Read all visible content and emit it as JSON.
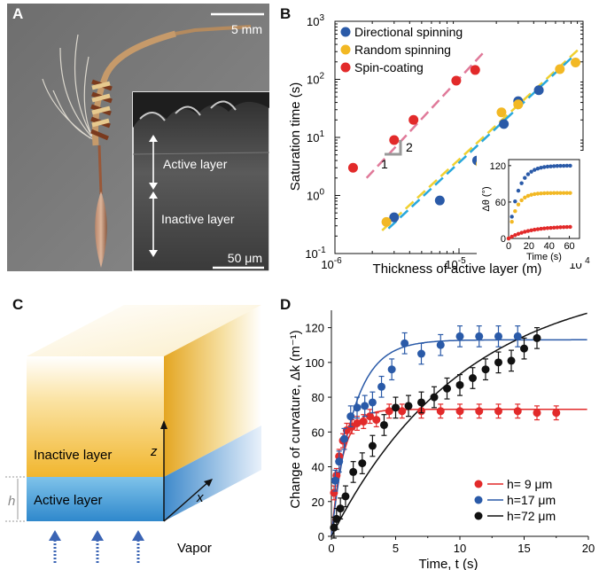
{
  "panels": {
    "a": "A",
    "b": "B",
    "c": "C",
    "d": "D"
  },
  "photo": {
    "scale_bar_top": "5 mm",
    "scale_bar_inset": "50 μm",
    "label_active": "Active layer",
    "label_inactive": "Inactive layer"
  },
  "diagram_c": {
    "inactive_label": "Inactive layer",
    "active_label": "Active layer",
    "axis_z": "z",
    "axis_x": "x",
    "thickness_label": "h",
    "vapor_label": "Vapor"
  },
  "chart_data": [
    {
      "type": "scatter",
      "xscale": "log",
      "yscale": "log",
      "xlabel": "Thickness of active layer (m)",
      "ylabel": "Saturation time (s)",
      "xlim": [
        1e-06,
        0.0001
      ],
      "ylim": [
        0.1,
        1000
      ],
      "x_ticks": [
        {
          "v": 1e-06,
          "base": "10",
          "exp": "-6"
        },
        {
          "v": 1e-05,
          "base": "10",
          "exp": "-5"
        },
        {
          "v": 0.0001,
          "base": "10",
          "exp": "-4"
        }
      ],
      "y_ticks": [
        {
          "v": 0.1,
          "base": "10",
          "exp": "-1"
        },
        {
          "v": 1,
          "base": "10",
          "exp": "0"
        },
        {
          "v": 10,
          "base": "10",
          "exp": "1"
        },
        {
          "v": 100,
          "base": "10",
          "exp": "2"
        },
        {
          "v": 1000,
          "base": "10",
          "exp": "3"
        }
      ],
      "legend_position": "top-left",
      "series": [
        {
          "name": "Directional spinning",
          "color": "#2a5aa8",
          "points": [
            [
              3e-06,
              0.42
            ],
            [
              7e-06,
              0.82
            ],
            [
              1.4e-05,
              4.0
            ],
            [
              2.3e-05,
              17
            ],
            [
              3e-05,
              42
            ],
            [
              4.4e-05,
              65
            ]
          ]
        },
        {
          "name": "Random spinning",
          "color": "#f2b824",
          "points": [
            [
              2.6e-06,
              0.35
            ],
            [
              1.5e-05,
              3.5
            ],
            [
              2.2e-05,
              27
            ],
            [
              3e-05,
              37
            ],
            [
              6.5e-05,
              150
            ],
            [
              8.7e-05,
              195
            ]
          ]
        },
        {
          "name": "Spin-coating",
          "color": "#e22a2a",
          "points": [
            [
              1.4e-06,
              3.0
            ],
            [
              3e-06,
              9.0
            ],
            [
              4.3e-06,
              20
            ],
            [
              9.5e-06,
              95
            ],
            [
              1.35e-05,
              145
            ]
          ]
        }
      ],
      "fit_lines": [
        {
          "color": "#e07a9a",
          "from": [
            1.8e-06,
            2.0
          ],
          "to": [
            1.6e-05,
            300
          ]
        },
        {
          "color": "#f0d030",
          "from": [
            2.4e-06,
            0.25
          ],
          "to": [
            9.5e-05,
            350
          ]
        },
        {
          "color": "#29a8dc",
          "from": [
            2.7e-06,
            0.27
          ],
          "to": [
            8.5e-05,
            260
          ]
        }
      ],
      "slope_marker": {
        "run": "1",
        "rise": "2"
      },
      "inset": {
        "type": "scatter",
        "xlabel": "Time (s)",
        "ylabel": "Δθ (°)",
        "xlim": [
          0,
          70
        ],
        "ylim": [
          0,
          130
        ],
        "x_ticks": [
          "0",
          "20",
          "40",
          "60"
        ],
        "y_ticks": [
          "0",
          "60",
          "120"
        ],
        "series": [
          {
            "name": "Directional spinning",
            "color": "#2a5aa8",
            "final": 120,
            "tau": 9
          },
          {
            "name": "Random spinning",
            "color": "#f2b824",
            "final": 75,
            "tau": 7
          },
          {
            "name": "Spin-coating",
            "color": "#e22a2a",
            "final": 20,
            "tau": 20
          }
        ]
      }
    },
    {
      "type": "scatter",
      "xlabel": "Time, t (s)",
      "ylabel": "Change of curvature, Δk (m⁻¹)",
      "xlim": [
        0,
        20
      ],
      "ylim": [
        0,
        130
      ],
      "x_ticks": [
        "0",
        "5",
        "10",
        "15",
        "20"
      ],
      "y_ticks": [
        "0",
        "20",
        "40",
        "60",
        "80",
        "100",
        "120"
      ],
      "legend_position": "bottom-right",
      "series": [
        {
          "name": "h=  9 μm",
          "color": "#e22a2a",
          "fit_final": 73,
          "fit_tau": 0.9,
          "points": [
            [
              0.2,
              25
            ],
            [
              0.4,
              35
            ],
            [
              0.6,
              46
            ],
            [
              0.9,
              55
            ],
            [
              1.2,
              61
            ],
            [
              1.6,
              63
            ],
            [
              2.0,
              65
            ],
            [
              2.5,
              66
            ],
            [
              3.0,
              69
            ],
            [
              3.5,
              67
            ],
            [
              4.5,
              72
            ],
            [
              5.5,
              72
            ],
            [
              7.0,
              72
            ],
            [
              8.5,
              72
            ],
            [
              10.0,
              72
            ],
            [
              11.5,
              72
            ],
            [
              13.0,
              72
            ],
            [
              14.5,
              72
            ],
            [
              16.0,
              71
            ],
            [
              17.5,
              71
            ]
          ],
          "error": 4
        },
        {
          "name": "h=17 μm",
          "color": "#2a5aa8",
          "fit_final": 113,
          "fit_tau": 1.7,
          "points": [
            [
              0.3,
              32
            ],
            [
              0.6,
              43
            ],
            [
              1.0,
              56
            ],
            [
              1.5,
              69
            ],
            [
              2.0,
              74
            ],
            [
              2.6,
              75
            ],
            [
              3.2,
              77
            ],
            [
              3.9,
              86
            ],
            [
              4.7,
              96
            ],
            [
              5.7,
              111
            ],
            [
              7.0,
              105
            ],
            [
              8.5,
              110
            ],
            [
              10.0,
              115
            ],
            [
              11.5,
              115
            ],
            [
              13.0,
              115
            ],
            [
              14.5,
              115
            ]
          ],
          "error": 6
        },
        {
          "name": "h=72 μm",
          "color": "#111111",
          "fit_final": 150,
          "fit_tau": 10.3,
          "points": [
            [
              0.2,
              5
            ],
            [
              0.4,
              10
            ],
            [
              0.7,
              16
            ],
            [
              1.1,
              23
            ],
            [
              1.7,
              37
            ],
            [
              2.4,
              42
            ],
            [
              3.2,
              52
            ],
            [
              4.1,
              64
            ],
            [
              5.0,
              74
            ],
            [
              6.0,
              75
            ],
            [
              7.0,
              77
            ],
            [
              8.0,
              80
            ],
            [
              9.0,
              85
            ],
            [
              10.0,
              87
            ],
            [
              11.0,
              91
            ],
            [
              12.0,
              96
            ],
            [
              13.0,
              100
            ],
            [
              14.0,
              101
            ],
            [
              15.0,
              108
            ],
            [
              16.0,
              114
            ]
          ],
          "error": 6
        }
      ]
    }
  ]
}
